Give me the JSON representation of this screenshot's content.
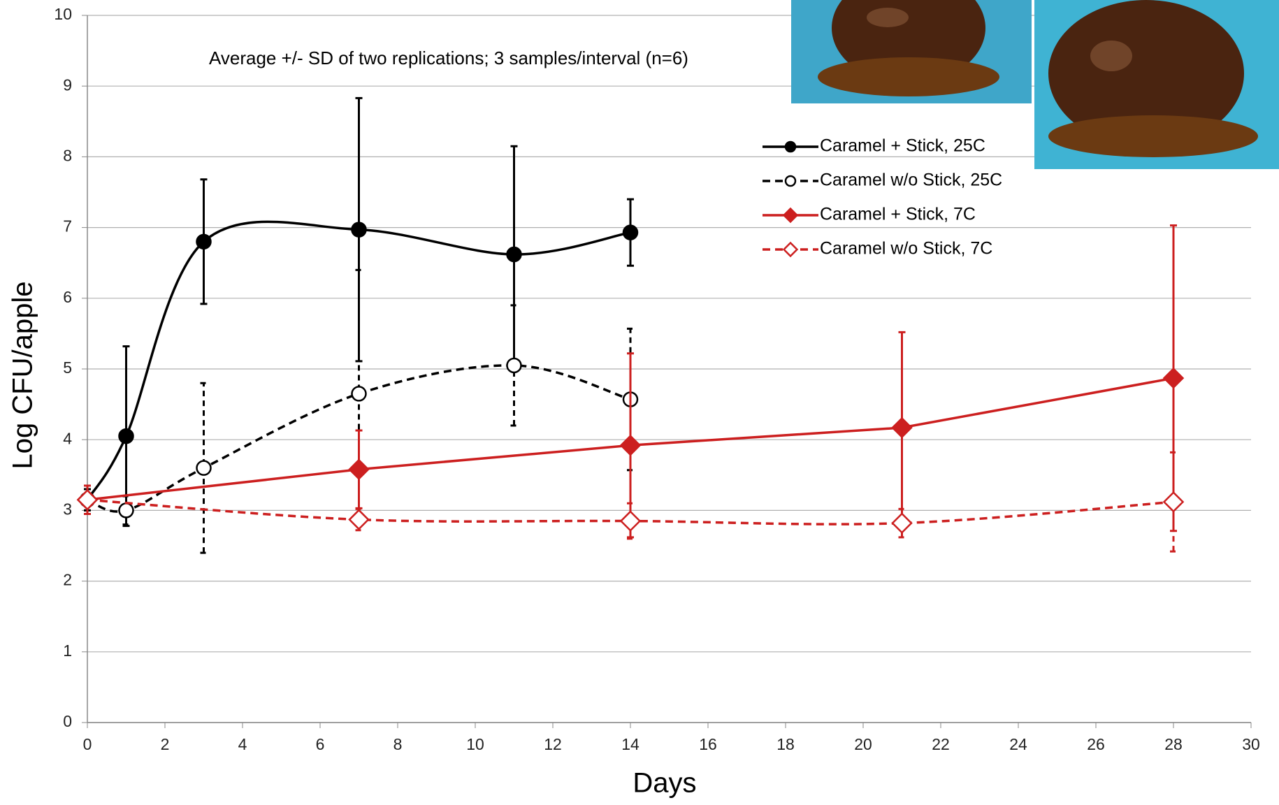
{
  "chart_data": {
    "type": "line",
    "annotation": "Average +/- SD of two replications; 3 samples/interval (n=6)",
    "x_label": "Days",
    "y_label": "Log CFU/apple",
    "xlim": [
      0,
      30
    ],
    "xticks": [
      0,
      2,
      4,
      6,
      8,
      10,
      12,
      14,
      16,
      18,
      20,
      22,
      24,
      26,
      28,
      30
    ],
    "ylim": [
      0,
      10
    ],
    "yticks": [
      0,
      1,
      2,
      3,
      4,
      5,
      6,
      7,
      8,
      9,
      10
    ],
    "grid": true,
    "legend": "upper right",
    "series": [
      {
        "name": "Caramel + Stick, 25C",
        "color": "#000000",
        "marker": "circle",
        "filled": true,
        "dashed": false,
        "smooth": true,
        "x": [
          0,
          1,
          3,
          7,
          11,
          14
        ],
        "values": [
          3.15,
          4.05,
          6.8,
          6.97,
          6.62,
          6.93
        ],
        "errors": [
          0.15,
          1.27,
          0.88,
          1.86,
          1.53,
          0.47
        ]
      },
      {
        "name": "Caramel w/o Stick, 25C",
        "color": "#000000",
        "marker": "circle",
        "filled": false,
        "dashed": true,
        "smooth": true,
        "x": [
          0,
          1,
          3,
          7,
          11,
          14
        ],
        "values": [
          3.15,
          3.0,
          3.6,
          4.65,
          5.05,
          4.57
        ],
        "errors": [
          0.15,
          0.2,
          1.2,
          1.75,
          0.85,
          1.0
        ]
      },
      {
        "name": "Caramel + Stick, 7C",
        "color": "#cc1f1f",
        "marker": "diamond",
        "filled": true,
        "dashed": false,
        "smooth": false,
        "x": [
          0,
          7,
          14,
          21,
          28
        ],
        "values": [
          3.15,
          3.58,
          3.92,
          4.17,
          4.87
        ],
        "errors": [
          0.2,
          0.55,
          1.3,
          1.35,
          2.16
        ]
      },
      {
        "name": "Caramel w/o Stick, 7C",
        "color": "#cc1f1f",
        "marker": "diamond",
        "filled": false,
        "dashed": true,
        "smooth": true,
        "x": [
          0,
          7,
          14,
          21,
          28
        ],
        "values": [
          3.15,
          2.87,
          2.85,
          2.82,
          3.12
        ],
        "errors": [
          0.2,
          0.15,
          0.25,
          0.2,
          0.7
        ]
      }
    ]
  }
}
